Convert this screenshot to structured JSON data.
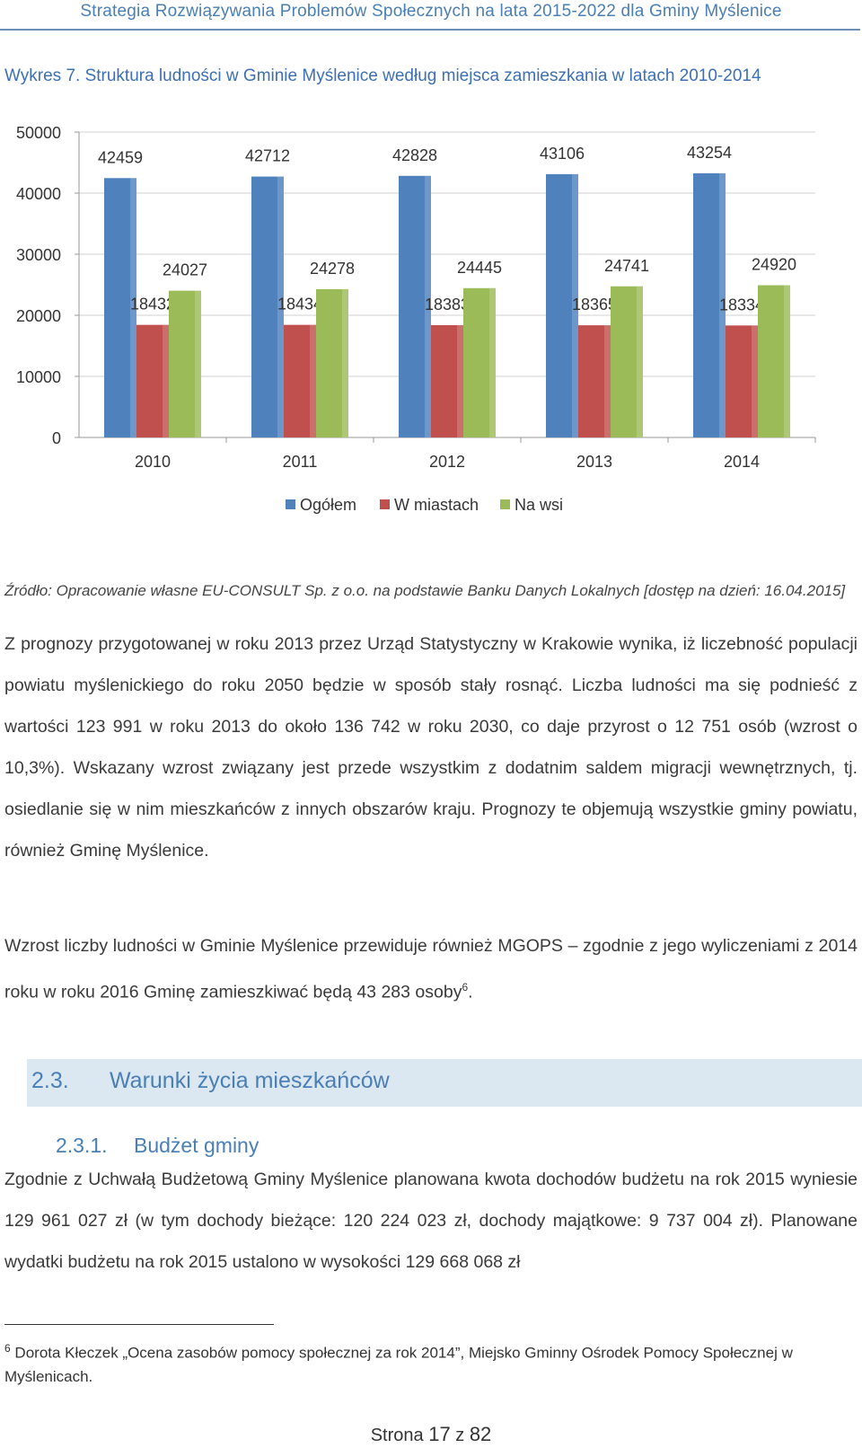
{
  "header": {
    "title": "Strategia Rozwiązywania Problemów Społecznych na lata 2015-2022 dla Gminy Myślenice"
  },
  "figure": {
    "caption": "Wykres 7. Struktura ludności w Gminie Myślenice według miejsca zamieszkania w latach 2010-2014"
  },
  "chart_data": {
    "type": "bar",
    "title": "Wykres 7. Struktura ludności w Gminie Myślenice według miejsca zamieszkania w latach 2010-2014",
    "categories": [
      "2010",
      "2011",
      "2012",
      "2013",
      "2014"
    ],
    "series": [
      {
        "name": "Ogółem",
        "color": "#4f81bd",
        "values": [
          42459,
          42712,
          42828,
          43106,
          43254
        ]
      },
      {
        "name": "W miastach",
        "color": "#c0504d",
        "values": [
          18432,
          18434,
          18383,
          18365,
          18334
        ]
      },
      {
        "name": "Na wsi",
        "color": "#9bbb59",
        "values": [
          24027,
          24278,
          24445,
          24741,
          24920
        ]
      }
    ],
    "yticks": [
      "0",
      "10000",
      "20000",
      "30000",
      "40000",
      "50000"
    ],
    "ylim": [
      0,
      50000
    ],
    "xlabel": "",
    "ylabel": "",
    "grid": true,
    "legend": "bottom"
  },
  "source": {
    "text": "Źródło: Opracowanie własne EU-CONSULT Sp. z o.o. na podstawie Banku Danych Lokalnych [dostęp na dzień: 16.04.2015]"
  },
  "paragraphs": {
    "p1": "Z prognozy przygotowanej w roku 2013 przez Urząd Statystyczny w Krakowie wynika, iż liczebność populacji powiatu myślenickiego do roku 2050 będzie w sposób stały rosnąć. Liczba ludności ma się podnieść z wartości 123 991 w roku 2013 do około 136 742 w roku 2030, co daje przyrost o 12 751 osób (wzrost o 10,3%). Wskazany wzrost związany jest przede wszystkim z dodatnim saldem migracji wewnętrznych, tj. osiedlanie się w nim mieszkańców z innych obszarów kraju. Prognozy te objemują wszystkie gminy powiatu, również Gminę Myślenice.",
    "p2": "Wzrost liczby ludności w Gminie Myślenice przewiduje również MGOPS – zgodnie z jego wyliczeniami z 2014 roku w roku 2016 Gminę zamieszkiwać będą 43 283 osoby",
    "p2_sup": "6",
    "p2_end": ".",
    "p3": "Zgodnie z Uchwałą Budżetową Gminy Myślenice planowana kwota dochodów budżetu na rok 2015 wyniesie 129 961 027 zł (w tym dochody bieżące: 120 224 023 zł, dochody majątkowe: 9 737 004 zł). Planowane wydatki budżetu na rok 2015 ustalono w wysokości 129 668 068 zł"
  },
  "section": {
    "number": "2.3.",
    "title": "Warunki życia mieszkańców"
  },
  "subsection": {
    "number": "2.3.1.",
    "title": "Budżet gminy"
  },
  "footnote": {
    "mark": "6",
    "text": "Dorota Kłeczek „Ocena zasobów pomocy społecznej za rok 2014”, Miejsko Gminny Ośrodek Pomocy Społecznej w Myślenicach."
  },
  "footer": {
    "prefix": "Strona",
    "current": "17",
    "sep": "z",
    "total": "82"
  }
}
